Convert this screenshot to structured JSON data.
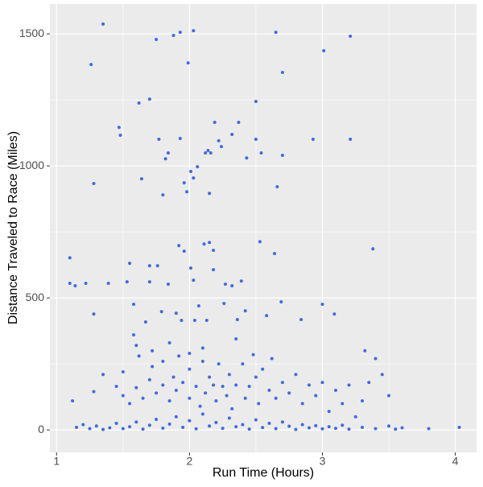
{
  "chart_data": {
    "type": "scatter",
    "x_label": "Run Time (Hours)",
    "y_label": "Distance Traveled to Race (Miles)",
    "color": "#4169e1",
    "xlim": [
      0.95,
      4.16
    ],
    "ylim": [
      -85,
      1613
    ],
    "xticks": [
      1,
      2,
      3,
      4
    ],
    "yticks": [
      0,
      500,
      1000,
      1500
    ],
    "xminor": [
      1.5,
      2.5,
      3.5
    ],
    "yminor": [
      250,
      750,
      1250
    ],
    "grid": true,
    "x": [
      1.35,
      1.26,
      1.28,
      1.1,
      1.1,
      1.14,
      1.28,
      1.47,
      1.48,
      1.62,
      1.7,
      1.75,
      1.88,
      1.93,
      2.03,
      1.99,
      1.77,
      1.84,
      1.82,
      1.8,
      1.93,
      1.96,
      2.01,
      2.03,
      2.06,
      2.12,
      2.14,
      2.16,
      2.19,
      2.22,
      2.24,
      2.32,
      2.37,
      2.43,
      2.5,
      2.54,
      2.5,
      2.65,
      2.7,
      2.7,
      2.66,
      3.01,
      3.21,
      3.21,
      2.93,
      1.64,
      2.15,
      1.98,
      1.55,
      1.7,
      1.7,
      1.84,
      1.76,
      1.92,
      1.96,
      2.11,
      2.15,
      2.18,
      2.53,
      2.64,
      2.39,
      2.03,
      2.01,
      2.27,
      2.32,
      3.38,
      1.22,
      1.39,
      1.53,
      2.18,
      1.58,
      1.79,
      2.07,
      2.26,
      2.42,
      2.69,
      2.84,
      3.0,
      3.09,
      2.58,
      2.36,
      2.13,
      2.04,
      1.94,
      1.9,
      1.67,
      1.15,
      1.2,
      1.25,
      1.3,
      1.35,
      1.4,
      1.45,
      1.5,
      1.55,
      1.6,
      1.65,
      1.7,
      1.75,
      1.8,
      1.85,
      1.9,
      1.95,
      2.0,
      2.05,
      2.1,
      2.15,
      2.2,
      2.25,
      2.3,
      2.35,
      2.4,
      2.45,
      2.5,
      2.55,
      2.6,
      2.65,
      2.7,
      2.75,
      2.8,
      2.85,
      2.9,
      2.95,
      3.0,
      3.05,
      3.1,
      3.15,
      3.2,
      3.3,
      3.4,
      3.5,
      3.55,
      3.6,
      3.8,
      4.03,
      1.12,
      1.28,
      1.35,
      1.45,
      1.5,
      1.5,
      1.55,
      1.6,
      1.62,
      1.65,
      1.7,
      1.72,
      1.75,
      1.8,
      1.8,
      1.85,
      1.88,
      1.9,
      1.92,
      1.95,
      2.0,
      2.0,
      2.05,
      2.08,
      2.1,
      2.12,
      2.15,
      2.18,
      2.2,
      2.22,
      2.25,
      2.28,
      2.3,
      2.32,
      2.35,
      2.4,
      2.42,
      2.45,
      2.5,
      2.52,
      2.55,
      2.6,
      2.62,
      2.65,
      2.7,
      2.75,
      2.8,
      2.85,
      2.9,
      2.95,
      3.0,
      3.05,
      3.1,
      3.15,
      3.2,
      3.25,
      3.3,
      3.32,
      3.35,
      3.4,
      3.45,
      3.5,
      1.58,
      1.6,
      1.72,
      1.85,
      2.0,
      2.1,
      2.35,
      2.48
    ],
    "y": [
      1537,
      1384,
      933,
      652,
      555,
      546,
      439,
      1146,
      1116,
      1238,
      1253,
      1479,
      1494,
      1506,
      1512,
      1390,
      1101,
      1049,
      1027,
      890,
      1104,
      936,
      979,
      954,
      997,
      1049,
      1058,
      1049,
      1165,
      1095,
      1073,
      1119,
      1165,
      1030,
      1244,
      1049,
      1101,
      1506,
      1354,
      1040,
      921,
      1436,
      1491,
      1101,
      1101,
      951,
      896,
      902,
      631,
      622,
      561,
      552,
      622,
      698,
      677,
      704,
      710,
      680,
      713,
      668,
      564,
      567,
      613,
      552,
      546,
      686,
      555,
      555,
      561,
      607,
      476,
      448,
      470,
      479,
      451,
      485,
      418,
      476,
      439,
      433,
      418,
      415,
      415,
      415,
      442,
      409,
      10,
      20,
      5,
      15,
      2,
      8,
      25,
      5,
      12,
      30,
      3,
      18,
      40,
      7,
      22,
      50,
      10,
      35,
      4,
      60,
      15,
      28,
      6,
      45,
      12,
      20,
      3,
      38,
      9,
      25,
      5,
      30,
      14,
      2,
      20,
      8,
      16,
      4,
      12,
      6,
      18,
      3,
      10,
      5,
      15,
      3,
      8,
      5,
      10,
      110,
      145,
      210,
      165,
      130,
      220,
      100,
      160,
      280,
      120,
      190,
      240,
      140,
      170,
      260,
      110,
      200,
      150,
      280,
      180,
      120,
      230,
      165,
      90,
      260,
      140,
      200,
      170,
      110,
      250,
      165,
      130,
      210,
      80,
      170,
      250,
      120,
      165,
      200,
      100,
      230,
      150,
      270,
      120,
      180,
      140,
      210,
      100,
      170,
      130,
      180,
      70,
      150,
      100,
      170,
      50,
      110,
      300,
      180,
      270,
      210,
      130,
      360,
      320,
      300,
      330,
      290,
      310,
      345,
      285
    ]
  }
}
